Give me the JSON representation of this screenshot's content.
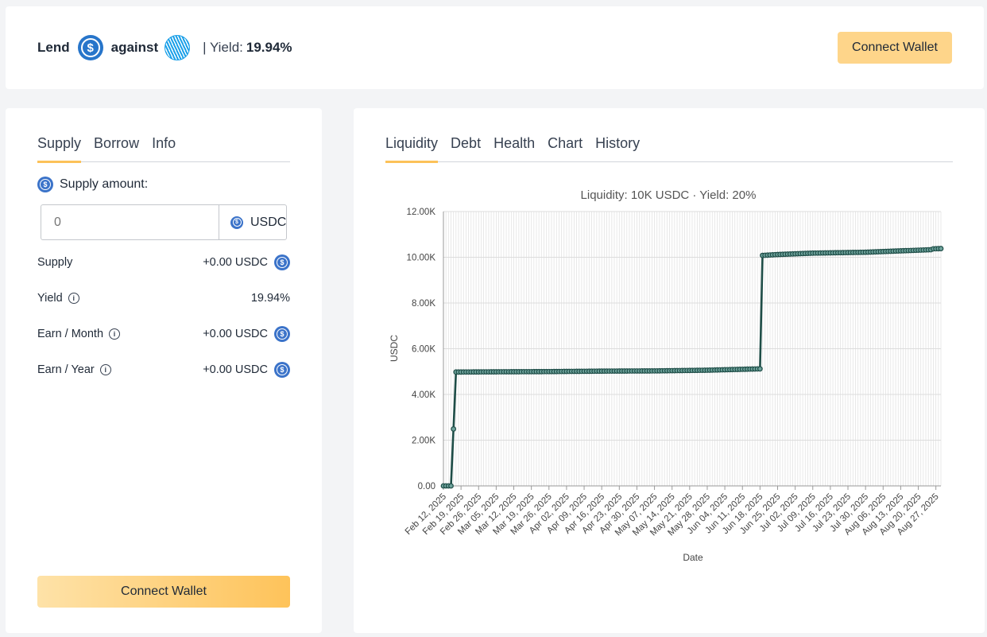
{
  "header": {
    "lend_label": "Lend",
    "against_label": "against",
    "yield_prefix": "| Yield:",
    "yield_value": "19.94%",
    "connect_wallet": "Connect Wallet"
  },
  "left_panel": {
    "tabs": [
      "Supply",
      "Borrow",
      "Info"
    ],
    "active_tab": "Supply",
    "supply_amount_label": "Supply amount:",
    "amount_placeholder": "0",
    "amount_unit": "USDC",
    "stats": [
      {
        "label": "Supply",
        "value": "+0.00 USDC",
        "info": false,
        "coin": true
      },
      {
        "label": "Yield",
        "value": "19.94%",
        "info": true,
        "coin": false
      },
      {
        "label": "Earn / Month",
        "value": "+0.00 USDC",
        "info": true,
        "coin": true
      },
      {
        "label": "Earn / Year",
        "value": "+0.00 USDC",
        "info": true,
        "coin": true
      }
    ],
    "connect_wallet": "Connect Wallet"
  },
  "right_panel": {
    "tabs": [
      "Liquidity",
      "Debt",
      "Health",
      "Chart",
      "History"
    ],
    "active_tab": "Liquidity"
  },
  "colors": {
    "accent": "#fcc259",
    "usdc": "#2775ca",
    "line": "#1e4d47"
  },
  "chart_data": {
    "type": "line",
    "title": "Liquidity: 10K USDC · Yield: 20%",
    "xlabel": "Date",
    "ylabel": "USDC",
    "ylim": [
      0,
      12000
    ],
    "yticks": [
      "0.00",
      "2.00K",
      "4.00K",
      "6.00K",
      "8.00K",
      "10.00K",
      "12.00K"
    ],
    "xticks": [
      "Feb 12, 2025",
      "Feb 19, 2025",
      "Feb 26, 2025",
      "Mar 05, 2025",
      "Mar 12, 2025",
      "Mar 19, 2025",
      "Mar 26, 2025",
      "Apr 02, 2025",
      "Apr 09, 2025",
      "Apr 16, 2025",
      "Apr 23, 2025",
      "Apr 30, 2025",
      "May 07, 2025",
      "May 14, 2025",
      "May 21, 2025",
      "May 28, 2025",
      "Jun 04, 2025",
      "Jun 11, 2025",
      "Jun 18, 2025",
      "Jun 25, 2025",
      "Jul 02, 2025",
      "Jul 09, 2025",
      "Jul 16, 2025",
      "Jul 23, 2025",
      "Jul 30, 2025",
      "Aug 06, 2025",
      "Aug 13, 2025",
      "Aug 20, 2025",
      "Aug 27, 2025"
    ],
    "grid": true,
    "series": [
      {
        "x": [
          "2025-02-12",
          "2025-02-15",
          "2025-02-17",
          "2025-03-05",
          "2025-03-26",
          "2025-04-16",
          "2025-05-07",
          "2025-05-28",
          "2025-06-11",
          "2025-06-18",
          "2025-06-19",
          "2025-06-25",
          "2025-07-09",
          "2025-07-30",
          "2025-08-13",
          "2025-08-25",
          "2025-08-26",
          "2025-08-29"
        ],
        "values": [
          0,
          0,
          4980,
          4990,
          5000,
          5020,
          5030,
          5060,
          5100,
          5120,
          10080,
          10120,
          10180,
          10220,
          10280,
          10330,
          10370,
          10380
        ]
      }
    ]
  }
}
